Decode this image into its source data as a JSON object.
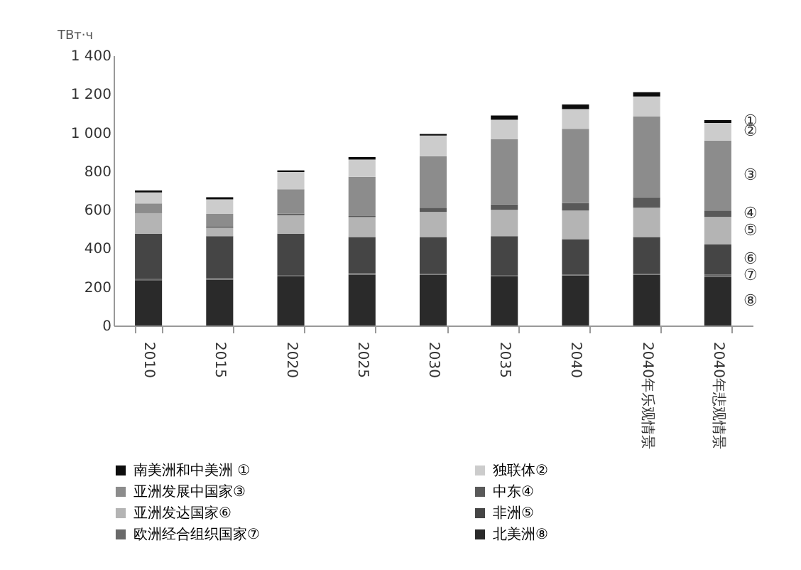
{
  "chart_data": {
    "type": "bar",
    "stacked": true,
    "ylabel": "ТВт·ч",
    "categories": [
      "2010",
      "2015",
      "2020",
      "2025",
      "2030",
      "2035",
      "2040",
      "2040年乐观情景",
      "2040年悲观情景"
    ],
    "series": [
      {
        "name": "北美洲⑧",
        "color": "#2a2a2a",
        "values": [
          235,
          237,
          254,
          263,
          263,
          254,
          259,
          263,
          252
        ]
      },
      {
        "name": "欧洲经合组织国家⑦",
        "color": "#6a6a6a",
        "values": [
          5,
          9,
          5,
          9,
          5,
          5,
          5,
          5,
          11
        ]
      },
      {
        "name": "非洲⑤",
        "color": "#454545",
        "values": [
          236,
          217,
          217,
          187,
          191,
          204,
          184,
          191,
          157
        ]
      },
      {
        "name": "亚洲发达国家⑥",
        "color": "#b4b4b4",
        "values": [
          108,
          44,
          96,
          103,
          130,
          137,
          148,
          152,
          143
        ]
      },
      {
        "name": "中东④",
        "color": "#595959",
        "values": [
          5,
          5,
          8,
          5,
          22,
          28,
          39,
          54,
          33
        ]
      },
      {
        "name": "亚洲发展中国家③",
        "color": "#8c8c8c",
        "values": [
          44,
          66,
          126,
          204,
          267,
          337,
          385,
          418,
          363
        ]
      },
      {
        "name": "独联体②",
        "color": "#cccccc",
        "values": [
          57,
          76,
          90,
          89,
          107,
          102,
          102,
          104,
          91
        ]
      },
      {
        "name": "南美洲和中美洲 ①",
        "color": "#0d0d0d",
        "values": [
          10,
          11,
          8,
          13,
          8,
          22,
          24,
          22,
          15
        ]
      }
    ],
    "ylim": [
      0,
      1400
    ],
    "yticks": [
      0,
      200,
      400,
      600,
      800,
      {
        "value": 1000,
        "label": "1 000"
      },
      {
        "value": 1200,
        "label": "1 200"
      },
      {
        "value": 1400,
        "label": "1 400"
      }
    ],
    "legend": "bottom",
    "annotations": [
      "①",
      "②",
      "③",
      "④",
      "⑤",
      "⑥",
      "⑦",
      "⑧"
    ]
  }
}
